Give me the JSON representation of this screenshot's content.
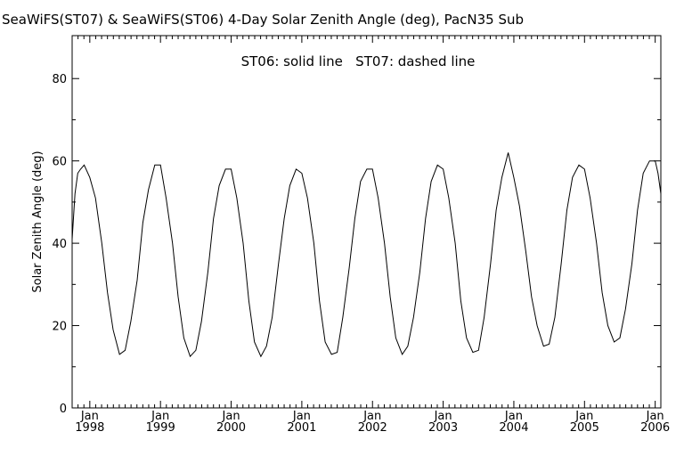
{
  "chart_data": {
    "type": "line",
    "title": "SeaWiFS(ST07) & SeaWiFS(ST06) 4-Day Solar Zenith Angle (deg), PacN35 Sub",
    "annotation": "ST06: solid line   ST07: dashed line",
    "xlabel": "",
    "ylabel": "Solar Zenith Angle (deg)",
    "xlim": [
      1997.75,
      2006.08
    ],
    "ylim": [
      0,
      90
    ],
    "yticks": [
      0,
      20,
      40,
      60,
      80
    ],
    "xticks": [
      {
        "year": 1998,
        "top": "Jan",
        "bottom": "1998"
      },
      {
        "year": 1999,
        "top": "Jan",
        "bottom": "1999"
      },
      {
        "year": 2000,
        "top": "Jan",
        "bottom": "2000"
      },
      {
        "year": 2001,
        "top": "Jan",
        "bottom": "2001"
      },
      {
        "year": 2002,
        "top": "Jan",
        "bottom": "2002"
      },
      {
        "year": 2003,
        "top": "Jan",
        "bottom": "2003"
      },
      {
        "year": 2004,
        "top": "Jan",
        "bottom": "2004"
      },
      {
        "year": 2005,
        "top": "Jan",
        "bottom": "2005"
      },
      {
        "year": 2006,
        "top": "Jan",
        "bottom": "2006"
      }
    ],
    "grid": false,
    "series": [
      {
        "name": "ST06",
        "style": "solid",
        "color": "#000000",
        "x": [
          1997.75,
          1997.79,
          1997.83,
          1997.87,
          1997.92,
          1998.0,
          1998.08,
          1998.17,
          1998.25,
          1998.33,
          1998.42,
          1998.5,
          1998.58,
          1998.67,
          1998.75,
          1998.83,
          1998.92,
          1999.0,
          1999.08,
          1999.17,
          1999.25,
          1999.33,
          1999.42,
          1999.5,
          1999.58,
          1999.67,
          1999.75,
          1999.83,
          1999.92,
          2000.0,
          2000.08,
          2000.17,
          2000.25,
          2000.33,
          2000.42,
          2000.5,
          2000.58,
          2000.67,
          2000.75,
          2000.83,
          2000.92,
          2001.0,
          2001.08,
          2001.17,
          2001.25,
          2001.33,
          2001.42,
          2001.5,
          2001.58,
          2001.67,
          2001.75,
          2001.83,
          2001.92,
          2002.0,
          2002.08,
          2002.17,
          2002.25,
          2002.33,
          2002.42,
          2002.5,
          2002.58,
          2002.67,
          2002.75,
          2002.83,
          2002.92,
          2003.0,
          2003.08,
          2003.17,
          2003.25,
          2003.33,
          2003.42,
          2003.5,
          2003.58,
          2003.67,
          2003.75,
          2003.83,
          2003.92,
          2004.0,
          2004.08,
          2004.17,
          2004.25,
          2004.33,
          2004.42,
          2004.5,
          2004.58,
          2004.67,
          2004.75,
          2004.83,
          2004.92,
          2005.0,
          2005.08,
          2005.17,
          2005.25,
          2005.33,
          2005.42,
          2005.5,
          2005.58,
          2005.67,
          2005.75,
          2005.83,
          2005.92,
          2006.0,
          2006.04,
          2006.08
        ],
        "y": [
          41,
          52,
          57,
          58,
          59,
          56,
          51,
          40,
          28,
          19,
          13,
          14,
          21,
          31,
          45,
          53,
          59,
          59,
          51,
          40,
          27,
          17,
          12.5,
          14,
          21,
          33,
          46,
          54,
          58,
          58,
          51,
          40,
          26,
          16,
          12.5,
          15,
          22,
          35,
          46,
          54,
          58,
          57,
          51,
          40,
          26,
          16,
          13,
          13.5,
          22,
          34,
          46,
          55,
          58,
          58,
          51,
          40,
          27,
          17,
          13,
          15,
          22,
          33,
          46,
          55,
          59,
          58,
          51,
          40,
          26,
          17,
          13.5,
          14,
          22,
          35,
          48,
          56,
          62,
          56,
          49,
          38,
          27,
          20,
          15,
          15.5,
          22,
          35,
          48,
          56,
          59,
          58,
          51,
          40,
          28,
          20,
          16,
          17,
          24,
          35,
          48,
          57,
          60,
          60,
          57,
          52
        ]
      }
    ]
  }
}
